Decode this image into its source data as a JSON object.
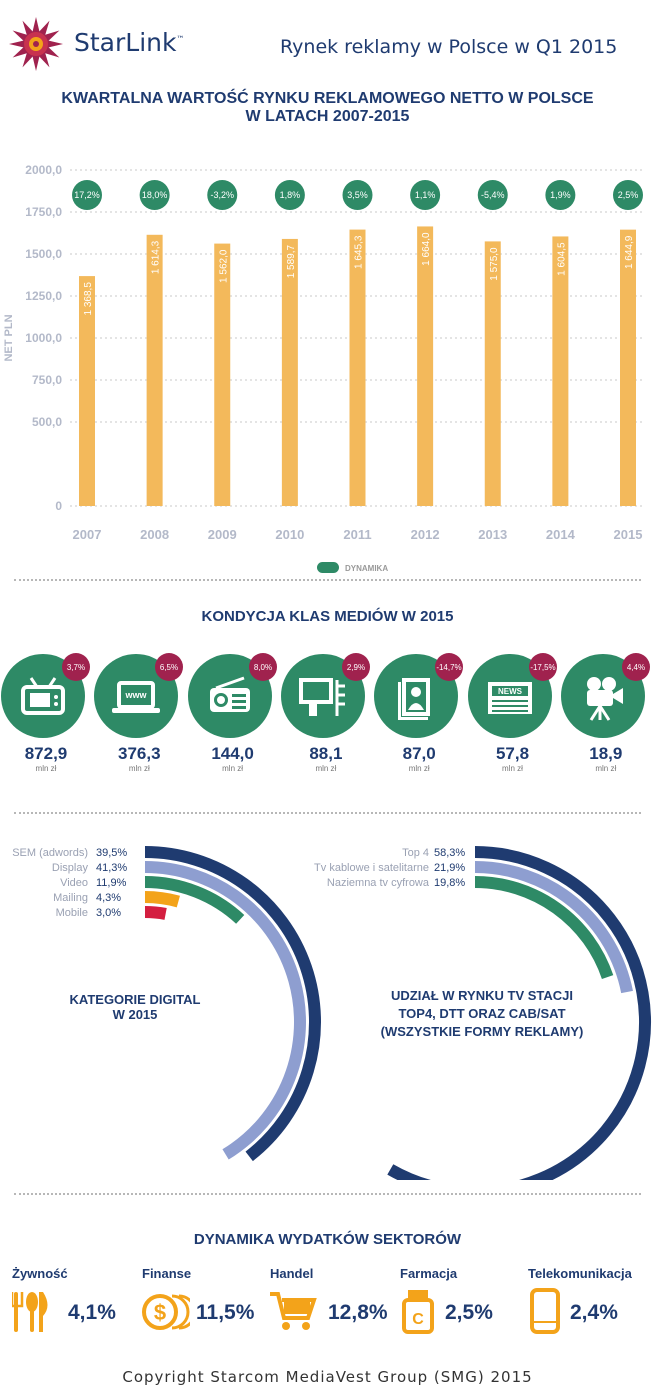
{
  "header": {
    "brand": "StarLink",
    "brand_tm": "™",
    "title": "Rynek reklamy w Polsce w Q1 2015"
  },
  "colors": {
    "navy": "#1f3b70",
    "bar": "#f3b95b",
    "green": "#2e8a66",
    "magenta": "#a0224e",
    "lavender": "#8e9ed0",
    "orange": "#f3a31a",
    "red": "#d41e40",
    "gray_text": "#b3b9c9"
  },
  "section1": {
    "title_line1": "KWARTALNA WARTOŚĆ RYNKU REKLAMOWEGO NETTO W POLSCE",
    "title_line2": "W LATACH 2007-2015"
  },
  "chart_data": {
    "type": "bar",
    "title": "KWARTALNA WARTOŚĆ RYNKU REKLAMOWEGO NETTO W POLSCE W LATACH 2007-2015",
    "ylabel": "NET PLN",
    "xlabel": "",
    "ylim": [
      0,
      2000
    ],
    "yticks": [
      "0",
      "500,0",
      "750,0",
      "1000,0",
      "1250,0",
      "1500,0",
      "1750,0",
      "2000,0"
    ],
    "categories": [
      "2007",
      "2008",
      "2009",
      "2010",
      "2011",
      "2012",
      "2013",
      "2014",
      "2015"
    ],
    "values": [
      1368.5,
      1614.3,
      1562.0,
      1589.7,
      1645.3,
      1664.0,
      1575.0,
      1604.5,
      1644.9
    ],
    "value_labels": [
      "1 368,5",
      "1 614,3",
      "1 562,0",
      "1 589,7",
      "1 645,3",
      "1 664,0",
      "1 575,0",
      "1 604,5",
      "1 644,9"
    ],
    "dynamics": [
      "17,2%",
      "18,0%",
      "-3,2%",
      "1,8%",
      "3,5%",
      "1,1%",
      "-5,4%",
      "1,9%",
      "2,5%"
    ],
    "legend": "DYNAMIKA"
  },
  "section2": {
    "title": "KONDYCJA KLAS MEDIÓW W 2015",
    "unit": "mln zł",
    "media": [
      {
        "icon": "tv-icon",
        "value": "872,9",
        "dyn": "3,7%"
      },
      {
        "icon": "www-laptop-icon",
        "value": "376,3",
        "dyn": "6,5%"
      },
      {
        "icon": "radio-icon",
        "value": "144,0",
        "dyn": "8,0%"
      },
      {
        "icon": "billboard-icon",
        "value": "88,1",
        "dyn": "2,9%"
      },
      {
        "icon": "magazine-icon",
        "value": "87,0",
        "dyn": "-14,7%"
      },
      {
        "icon": "newspaper-icon",
        "value": "57,8",
        "dyn": "-17,5%"
      },
      {
        "icon": "cinema-camera-icon",
        "value": "18,9",
        "dyn": "4,4%"
      }
    ]
  },
  "digital": {
    "title_line1": "KATEGORIE DIGITAL",
    "title_line2": "W 2015",
    "items": [
      {
        "label": "SEM (adwords)",
        "value": "39,5%",
        "pct": 39.5,
        "color": "#1f3b70"
      },
      {
        "label": "Display",
        "value": "41,3%",
        "pct": 41.3,
        "color": "#8e9ed0"
      },
      {
        "label": "Video",
        "value": "11,9%",
        "pct": 11.9,
        "color": "#2e8a66"
      },
      {
        "label": "Mailing",
        "value": "4,3%",
        "pct": 4.3,
        "color": "#f3a31a"
      },
      {
        "label": "Mobile",
        "value": "3,0%",
        "pct": 3.0,
        "color": "#d41e40"
      }
    ]
  },
  "tv": {
    "title_line1": "UDZIAŁ W RYNKU TV STACJI",
    "title_line2": "TOP4, DTT ORAZ CAB/SAT",
    "title_line3": "(WSZYSTKIE FORMY REKLAMY)",
    "items": [
      {
        "label": "Top 4",
        "value": "58,3%",
        "pct": 58.3,
        "color": "#1f3b70"
      },
      {
        "label": "Tv kablowe i satelitarne",
        "value": "21,9%",
        "pct": 21.9,
        "color": "#8e9ed0"
      },
      {
        "label": "Naziemna tv cyfrowa",
        "value": "19,8%",
        "pct": 19.8,
        "color": "#2e8a66"
      }
    ]
  },
  "section4": {
    "title": "DYNAMIKA WYDATKÓW SEKTORÓW",
    "sectors": [
      {
        "name": "Żywność",
        "icon": "cutlery-icon",
        "value": "4,1%"
      },
      {
        "name": "Finanse",
        "icon": "coins-icon",
        "value": "11,5%"
      },
      {
        "name": "Handel",
        "icon": "shopping-cart-icon",
        "value": "12,8%"
      },
      {
        "name": "Farmacja",
        "icon": "medicine-bottle-icon",
        "value": "2,5%"
      },
      {
        "name": "Telekomunikacja",
        "icon": "smartphone-icon",
        "value": "2,4%"
      }
    ]
  },
  "footer": {
    "copyright": "Copyright Starcom MediaVest Group (SMG) 2015"
  }
}
